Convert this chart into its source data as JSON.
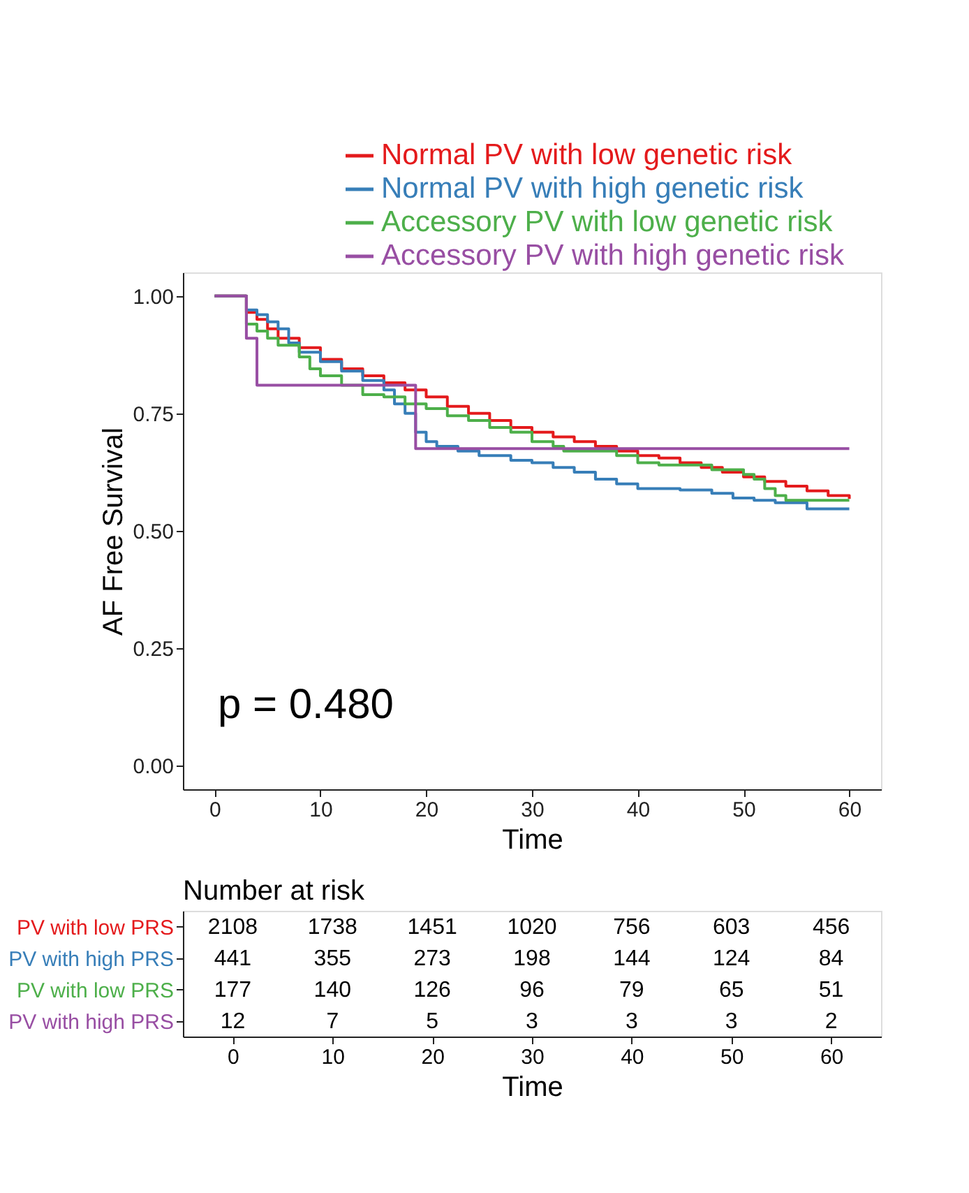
{
  "chart_data": [
    {
      "type": "step",
      "ylabel": "AF Free Survival",
      "xlabel": "Time",
      "xlim": [
        -3,
        63
      ],
      "xticks": [
        0,
        10,
        20,
        30,
        40,
        50,
        60
      ],
      "ylim": [
        -0.05,
        1.05
      ],
      "yticks": [
        {
          "value": 0,
          "label": "0.00"
        },
        {
          "value": 0.25,
          "label": "0.25"
        },
        {
          "value": 0.5,
          "label": "0.50"
        },
        {
          "value": 0.75,
          "label": "0.75"
        },
        {
          "value": 1,
          "label": "1.00"
        }
      ],
      "grid": false,
      "legend": "top right",
      "line_style": "solid",
      "marker": "none",
      "annotations": [
        "p = 0.480"
      ],
      "series": [
        {
          "name": "Normal PV with low genetic risk",
          "color": "#e41a1c",
          "x": [
            0,
            3,
            4,
            5,
            6,
            8,
            10,
            12,
            14,
            16,
            18,
            20,
            22,
            24,
            26,
            28,
            30,
            32,
            34,
            36,
            38,
            40,
            42,
            44,
            46,
            48,
            50,
            52,
            54,
            56,
            58,
            60
          ],
          "values": [
            1.0,
            0.965,
            0.95,
            0.93,
            0.91,
            0.89,
            0.865,
            0.845,
            0.83,
            0.815,
            0.8,
            0.785,
            0.765,
            0.75,
            0.735,
            0.72,
            0.71,
            0.7,
            0.69,
            0.68,
            0.67,
            0.66,
            0.655,
            0.645,
            0.635,
            0.625,
            0.615,
            0.605,
            0.595,
            0.585,
            0.575,
            0.568
          ]
        },
        {
          "name": "Normal PV with high genetic risk",
          "color": "#377eb8",
          "x": [
            0,
            3,
            4,
            5,
            6,
            7,
            8,
            10,
            12,
            14,
            16,
            17,
            18,
            19,
            20,
            21,
            23,
            25,
            28,
            30,
            32,
            34,
            36,
            38,
            40,
            44,
            47,
            49,
            51,
            53,
            56,
            60
          ],
          "values": [
            1.0,
            0.97,
            0.96,
            0.945,
            0.93,
            0.9,
            0.88,
            0.86,
            0.84,
            0.82,
            0.8,
            0.77,
            0.75,
            0.71,
            0.69,
            0.68,
            0.67,
            0.66,
            0.65,
            0.645,
            0.635,
            0.625,
            0.61,
            0.6,
            0.59,
            0.587,
            0.58,
            0.57,
            0.565,
            0.56,
            0.547,
            0.547
          ]
        },
        {
          "name": "Accessory PV with low genetic risk",
          "color": "#4daf4a",
          "x": [
            0,
            3,
            4,
            5,
            6,
            8,
            9,
            10,
            12,
            14,
            16,
            18,
            20,
            22,
            24,
            26,
            28,
            30,
            32,
            33,
            36,
            38,
            40,
            42,
            46,
            47,
            50,
            51,
            52,
            53,
            54,
            60
          ],
          "values": [
            1.0,
            0.94,
            0.925,
            0.91,
            0.895,
            0.87,
            0.845,
            0.83,
            0.81,
            0.79,
            0.785,
            0.77,
            0.76,
            0.745,
            0.735,
            0.72,
            0.71,
            0.69,
            0.68,
            0.67,
            0.67,
            0.66,
            0.645,
            0.64,
            0.64,
            0.63,
            0.62,
            0.61,
            0.59,
            0.575,
            0.565,
            0.565
          ]
        },
        {
          "name": "Accessory PV with high genetic risk",
          "color": "#984ea3",
          "x": [
            0,
            3,
            4,
            19,
            60
          ],
          "values": [
            1.0,
            0.91,
            0.81,
            0.675,
            0.675
          ]
        }
      ]
    },
    {
      "type": "heatmap",
      "title": "Number at risk",
      "xlabel": "Time",
      "data_labels": true,
      "categories": [
        "0",
        "10",
        "20",
        "30",
        "40",
        "50",
        "60"
      ],
      "y_categories": [
        "PV with low PRS",
        "PV with high PRS",
        "PV with low PRS",
        "PV with high PRS"
      ],
      "colors": [
        "#e41a1c",
        "#377eb8",
        "#4daf4a",
        "#984ea3"
      ],
      "cells": [
        [
          2108,
          1738,
          1451,
          1020,
          756,
          603,
          456
        ],
        [
          441,
          355,
          273,
          198,
          144,
          124,
          84
        ],
        [
          177,
          140,
          126,
          96,
          79,
          65,
          51
        ],
        [
          12,
          7,
          5,
          3,
          3,
          3,
          2
        ]
      ]
    }
  ]
}
